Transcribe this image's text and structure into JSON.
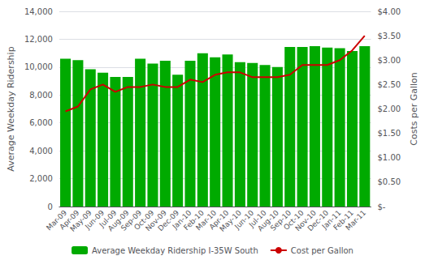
{
  "chart_data": {
    "type": "bar",
    "categories": [
      "Mar-09",
      "Apr-09",
      "May-09",
      "Jun-09",
      "Jul-09",
      "Aug-09",
      "Sep-09",
      "Oct-09",
      "Nov-09",
      "Dec-09",
      "Jan-10",
      "Feb-10",
      "Mar-10",
      "Apr-10",
      "May-10",
      "Jun-10",
      "Jul-10",
      "Aug-10",
      "Sep-10",
      "Oct-10",
      "Nov-10",
      "Dec-10",
      "Jan-11",
      "Feb-11",
      "Mar-11"
    ],
    "series": [
      {
        "name": "Average Weekday Ridership I-35W South",
        "type": "bar",
        "color": "#00AA00",
        "values": [
          10600,
          10500,
          9850,
          9600,
          9300,
          9300,
          10600,
          10250,
          10450,
          9450,
          10450,
          11000,
          10700,
          10900,
          10350,
          10300,
          10150,
          10000,
          11450,
          11450,
          11500,
          11400,
          11350,
          11150,
          11500
        ]
      },
      {
        "name": "Cost per Gallon",
        "type": "line",
        "color": "#CC0000",
        "axis": "y2",
        "values": [
          1.95,
          2.05,
          2.4,
          2.5,
          2.35,
          2.45,
          2.45,
          2.5,
          2.45,
          2.45,
          2.6,
          2.55,
          2.7,
          2.75,
          2.75,
          2.65,
          2.65,
          2.65,
          2.7,
          2.9,
          2.9,
          2.9,
          3.0,
          3.2,
          3.5
        ]
      }
    ],
    "ylabel": "Average Weekday Ridership",
    "y2label": "Costs per Gallon",
    "ylim": [
      0,
      14000
    ],
    "yticks": [
      0,
      {
        "value": 2000,
        "label": "2,000"
      },
      {
        "value": 4000,
        "label": "4,000"
      },
      {
        "value": 6000,
        "label": "6,000"
      },
      {
        "value": 8000,
        "label": "8,000"
      },
      {
        "value": 10000,
        "label": "10,000"
      },
      {
        "value": 12000,
        "label": "12,000"
      },
      {
        "value": 14000,
        "label": "14,000"
      }
    ],
    "y2lim": [
      0,
      4.0
    ],
    "y2ticks": [
      {
        "value": 0,
        "label": "$-"
      },
      {
        "value": 0.5,
        "label": "$0.50"
      },
      {
        "value": 1.0,
        "label": "$1.00"
      },
      {
        "value": 1.5,
        "label": "$1.50"
      },
      {
        "value": 2.0,
        "label": "$2.00"
      },
      {
        "value": 2.5,
        "label": "$2.50"
      },
      {
        "value": 3.0,
        "label": "$3.00"
      },
      {
        "value": 3.5,
        "label": "$3.50"
      },
      {
        "value": 4.0,
        "label": "$4.00"
      }
    ],
    "grid": true,
    "legend": "bottom"
  }
}
